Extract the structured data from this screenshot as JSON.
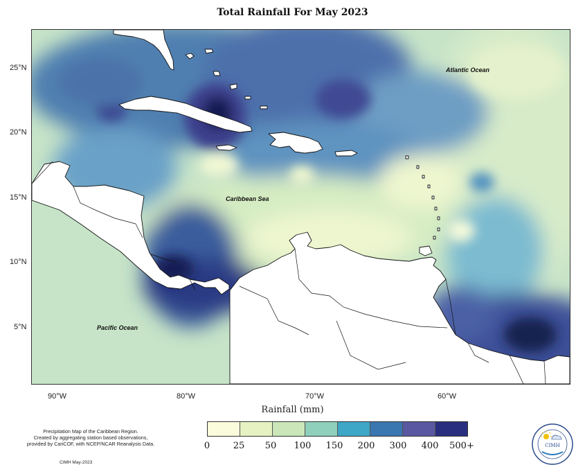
{
  "title": "Total Rainfall For May 2023",
  "x_axis_title": "Rainfall (mm)",
  "lon_ticks": [
    "90°W",
    "80°W",
    "70°W",
    "60°W"
  ],
  "lat_ticks": [
    "25°N",
    "20°N",
    "15°N",
    "10°N",
    "5°N"
  ],
  "places": {
    "atlantic": "Atlantic Ocean",
    "caribbean": "Caribbean Sea",
    "pacific": "Pacific Ocean"
  },
  "legend": {
    "labels": [
      "0",
      "25",
      "50",
      "100",
      "150",
      "200",
      "300",
      "400",
      "500+"
    ],
    "colors": [
      "#fbfcdc",
      "#e6f2c2",
      "#cbe6b8",
      "#8fd0bc",
      "#3ea6c6",
      "#3a76b0",
      "#5a58a0",
      "#2a2e7e",
      "#0c1a4f"
    ]
  },
  "notes": {
    "line1": "Precipitation Map of the Caribbean Region.",
    "line2": "Created by aggregating station based observations,",
    "line3": "provided by CariCOF, with NCEP/NCAR Reanalysis Data.",
    "credit": "CIMH May-2023",
    "logo_text": "CIMH"
  }
}
